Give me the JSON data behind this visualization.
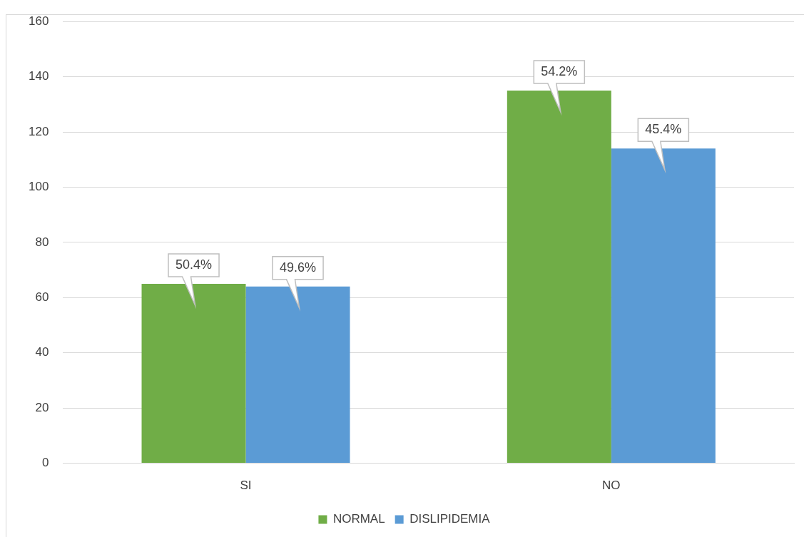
{
  "chart_data": {
    "type": "bar",
    "categories": [
      "SI",
      "NO"
    ],
    "series": [
      {
        "name": "NORMAL",
        "color": "#70ad47",
        "values": [
          65,
          135
        ]
      },
      {
        "name": "DISLIPIDEMIA",
        "color": "#5b9bd5",
        "values": [
          64,
          114
        ]
      }
    ],
    "annotations": [
      {
        "text": "50.4%",
        "x": "SI",
        "y": 65
      },
      {
        "text": "49.6%",
        "x": "SI",
        "y": 64
      },
      {
        "text": "54.2%",
        "x": "NO",
        "y": 135
      },
      {
        "text": "45.4%",
        "x": "NO",
        "y": 114
      }
    ],
    "ylim": [
      0,
      160
    ],
    "yticks": [
      0,
      20,
      40,
      60,
      80,
      100,
      120,
      140,
      160
    ],
    "grid": "y",
    "legend": "bottom"
  }
}
